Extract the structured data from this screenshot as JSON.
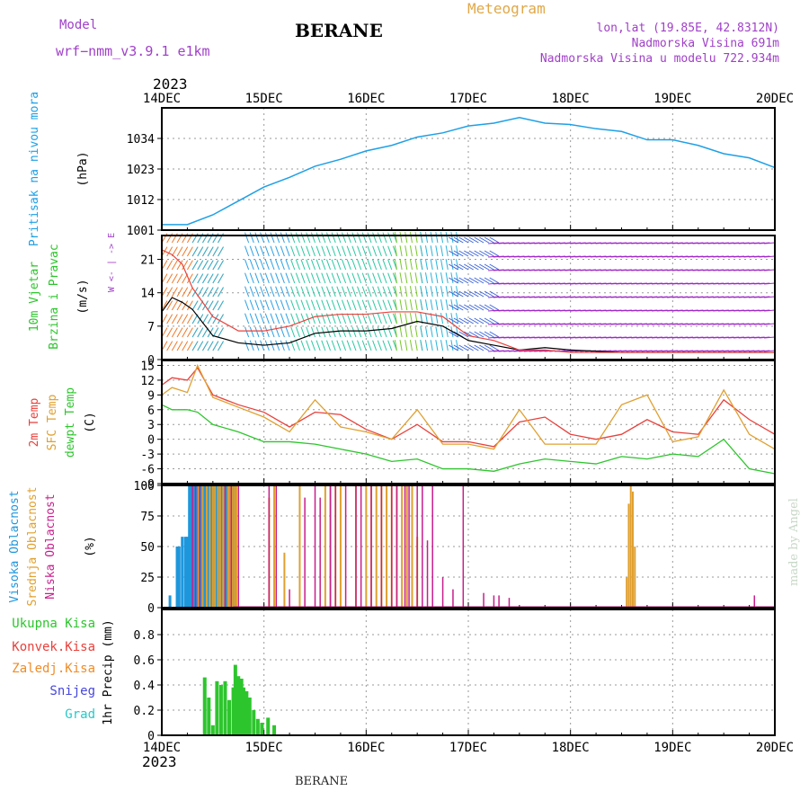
{
  "header": {
    "model_label": "Model",
    "model_name": "wrf−nmm_v3.9.1  e1km",
    "station": "BERANE",
    "product": "Meteogram",
    "coords": "lon,lat (19.85E, 42.8312N)",
    "elevation": "Nadmorska Visina 691m",
    "model_elevation": "Nadmorska Visina u modelu 722.934m",
    "year_top": "2023",
    "year_bottom": "2023",
    "footer_station": "BERANE",
    "credit": "made by Angel"
  },
  "colors": {
    "pressure": "#1EA0E6",
    "temp": "#E8413C",
    "sfc_temp": "#E0A030",
    "dewpt": "#2DC52D",
    "high_cloud": "#1E96DC",
    "mid_cloud": "#E0A030",
    "low_cloud": "#C81E8C",
    "total_precip": "#2DC52D",
    "conv_precip": "#E8413C",
    "frz_precip": "#F08C28",
    "snow": "#4646DC",
    "hail": "#28C8C8",
    "wind_speed": "#000000",
    "wind_gust": "#E8413C",
    "header_purple": "#A040C8",
    "header_orange": "#E0A848",
    "axis": "#000000",
    "grid": "#999999"
  },
  "chart_data": [
    {
      "type": "line",
      "panel": "pressure",
      "ylabel_title": "Pritisak na nivou mora",
      "ylabel_unit": "(hPa)",
      "x_ticks": [
        "14DEC",
        "15DEC",
        "16DEC",
        "17DEC",
        "18DEC",
        "19DEC",
        "20DEC"
      ],
      "ylim": [
        1001,
        1045
      ],
      "y_ticks": [
        1001,
        1012,
        1023,
        1034
      ],
      "series": [
        {
          "x": [
            0,
            0.25,
            0.5,
            0.75,
            1,
            1.25,
            1.5,
            1.75,
            2,
            2.25,
            2.5,
            2.75,
            3,
            3.25,
            3.5,
            3.75,
            4,
            4.25,
            4.5,
            4.75,
            5,
            5.25,
            5.5,
            5.75,
            6
          ],
          "values": [
            1003,
            1003,
            1006.5,
            1011.5,
            1016.5,
            1020,
            1024,
            1026.5,
            1029.5,
            1031.5,
            1034.5,
            1036,
            1038.5,
            1039.5,
            1041.5,
            1039.5,
            1039,
            1037.5,
            1036.5,
            1033.5,
            1033.5,
            1031.5,
            1028.5,
            1027,
            1023.5
          ]
        }
      ]
    },
    {
      "type": "line",
      "panel": "wind",
      "ylabel_title": "10m Vjetar",
      "ylabel_title2": "Brzina i Pravac",
      "ylabel_unit": "(m/s)",
      "compass_label": "W <- | -> E",
      "ylim": [
        0,
        26
      ],
      "y_ticks": [
        0,
        7,
        14,
        21
      ],
      "series": [
        {
          "name": "speed",
          "x": [
            0,
            0.1,
            0.2,
            0.3,
            0.5,
            0.75,
            1,
            1.25,
            1.5,
            1.75,
            2,
            2.25,
            2.5,
            2.75,
            3,
            3.25,
            3.5,
            3.75,
            4,
            4.5,
            5,
            5.5,
            6
          ],
          "values": [
            10,
            13,
            12,
            10.5,
            5,
            3.5,
            3,
            3.5,
            5.5,
            6,
            6,
            6.5,
            8,
            7,
            4,
            3,
            2,
            2.5,
            2,
            1.5,
            1.5,
            1.5,
            1.5
          ]
        },
        {
          "name": "gust",
          "x": [
            0,
            0.1,
            0.2,
            0.3,
            0.5,
            0.75,
            1,
            1.25,
            1.5,
            1.75,
            2,
            2.25,
            2.5,
            2.75,
            3,
            3.25,
            3.5,
            3.75,
            4,
            4.5,
            5,
            5.5,
            6
          ],
          "values": [
            23,
            22,
            20,
            15,
            9,
            6,
            6,
            7,
            9,
            9.5,
            9.5,
            10,
            10,
            9,
            5,
            4,
            2,
            2,
            1.5,
            1.5,
            1.5,
            1.5,
            1.5
          ]
        }
      ]
    },
    {
      "type": "line",
      "panel": "temperature",
      "ylabel_title": "2m Temp",
      "ylabel_title2": "SFC Temp",
      "ylabel_title3": "dewpt Temp",
      "ylabel_unit": "(C)",
      "ylim": [
        -9,
        16
      ],
      "y_ticks": [
        -9,
        -6,
        -3,
        0,
        3,
        6,
        9,
        12,
        15
      ],
      "series": [
        {
          "name": "2m",
          "x": [
            0,
            0.1,
            0.25,
            0.35,
            0.5,
            0.75,
            1,
            1.25,
            1.5,
            1.75,
            2,
            2.25,
            2.5,
            2.75,
            3,
            3.25,
            3.5,
            3.75,
            4,
            4.25,
            4.5,
            4.75,
            5,
            5.25,
            5.5,
            5.75,
            6
          ],
          "values": [
            11,
            12.5,
            12,
            14.5,
            9,
            7,
            5.5,
            2.5,
            5.5,
            5,
            2,
            0,
            3,
            -0.5,
            -0.5,
            -1.5,
            3.5,
            4.5,
            1,
            0,
            1,
            4,
            1.5,
            1,
            8,
            4,
            1
          ]
        },
        {
          "name": "sfc",
          "x": [
            0,
            0.1,
            0.25,
            0.35,
            0.5,
            0.75,
            1,
            1.25,
            1.5,
            1.75,
            2,
            2.25,
            2.5,
            2.75,
            3,
            3.25,
            3.5,
            3.75,
            4,
            4.25,
            4.5,
            4.75,
            5,
            5.25,
            5.5,
            5.75,
            6
          ],
          "values": [
            9,
            10.5,
            9.5,
            15,
            8.5,
            6.5,
            4.5,
            1.5,
            8,
            2.5,
            1.5,
            0,
            6,
            -1,
            -1,
            -2,
            6,
            -1,
            -1,
            -1,
            7,
            9,
            -0.5,
            0.5,
            10,
            1,
            -2
          ]
        },
        {
          "name": "dewpt",
          "x": [
            0,
            0.1,
            0.25,
            0.35,
            0.5,
            0.75,
            1,
            1.25,
            1.5,
            1.75,
            2,
            2.25,
            2.5,
            2.75,
            3,
            3.25,
            3.5,
            3.75,
            4,
            4.25,
            4.5,
            4.75,
            5,
            5.25,
            5.5,
            5.75,
            6
          ],
          "values": [
            7,
            6,
            6,
            5.5,
            3,
            1.5,
            -0.5,
            -0.5,
            -1,
            -2,
            -3,
            -4.5,
            -4,
            -6,
            -6,
            -6.5,
            -5,
            -4,
            -4.5,
            -5,
            -3.5,
            -4,
            -3,
            -3.5,
            0,
            -6,
            -7
          ]
        }
      ]
    },
    {
      "type": "bar",
      "panel": "cloud",
      "ylabel_title": "Visoka Oblacnost",
      "ylabel_title2": "Srednja Oblacnost",
      "ylabel_title3": "Niska Oblacnost",
      "ylabel_unit": "(%)",
      "ylim": [
        0,
        100
      ],
      "y_ticks": [
        0,
        25,
        50,
        75,
        100
      ],
      "series": [
        {
          "name": "high",
          "x": [
            0.08,
            0.15,
            0.17,
            0.2,
            0.23,
            0.25,
            0.27,
            0.29,
            0.31,
            0.33,
            0.35,
            0.37,
            0.39,
            0.41,
            0.43,
            0.46,
            0.48,
            0.51,
            0.54,
            0.56,
            0.59,
            0.61,
            0.64,
            0.67,
            0.7,
            0.72
          ],
          "values": [
            10,
            50,
            50,
            58,
            58,
            58,
            100,
            100,
            100,
            100,
            100,
            100,
            100,
            100,
            100,
            100,
            100,
            100,
            100,
            100,
            100,
            100,
            100,
            100,
            100,
            100
          ]
        },
        {
          "name": "mid",
          "x": [
            0.36,
            0.4,
            0.44,
            0.47,
            0.5,
            0.52,
            0.55,
            0.57,
            0.6,
            0.62,
            0.65,
            0.67,
            0.69,
            0.71,
            0.73,
            1.05,
            1.1,
            1.2,
            1.35,
            1.6,
            1.65,
            1.7,
            1.75,
            1.9,
            2.0,
            2.05,
            2.1,
            2.15,
            2.2,
            2.25,
            2.3,
            2.35,
            2.4,
            2.45,
            2.5,
            4.55,
            4.57,
            4.59,
            4.61,
            4.63
          ],
          "values": [
            100,
            100,
            100,
            100,
            100,
            100,
            100,
            100,
            100,
            100,
            100,
            100,
            100,
            100,
            100,
            90,
            100,
            45,
            100,
            100,
            100,
            100,
            100,
            100,
            100,
            100,
            100,
            100,
            100,
            100,
            100,
            100,
            100,
            100,
            58,
            25,
            85,
            100,
            95,
            50
          ]
        },
        {
          "name": "low",
          "x": [
            0.3,
            0.33,
            0.37,
            0.62,
            0.68,
            0.75,
            1.05,
            1.12,
            1.25,
            1.4,
            1.5,
            1.55,
            1.65,
            1.7,
            1.8,
            1.9,
            1.95,
            2.05,
            2.15,
            2.25,
            2.3,
            2.38,
            2.42,
            2.5,
            2.55,
            2.6,
            2.65,
            2.75,
            2.85,
            2.95,
            3.15,
            3.25,
            3.3,
            3.4,
            5.8
          ],
          "values": [
            100,
            100,
            100,
            100,
            100,
            100,
            100,
            100,
            15,
            90,
            100,
            90,
            100,
            100,
            100,
            100,
            100,
            100,
            100,
            100,
            100,
            100,
            100,
            100,
            100,
            55,
            100,
            25,
            15,
            100,
            12,
            10,
            10,
            8,
            10
          ]
        }
      ]
    },
    {
      "type": "bar",
      "panel": "precip",
      "ylabel_unit": "1hr Precip (mm)",
      "legend": [
        "Ukupna Kisa",
        "Konvek.Kisa",
        "Zaledj.Kisa",
        "Snijeg",
        "Grad"
      ],
      "x_ticks": [
        "14DEC",
        "15DEC",
        "16DEC",
        "17DEC",
        "18DEC",
        "19DEC",
        "20DEC"
      ],
      "ylim": [
        0,
        1.0
      ],
      "y_ticks": [
        0,
        0.2,
        0.4,
        0.6,
        0.8
      ],
      "series": [
        {
          "name": "total",
          "x": [
            0.42,
            0.46,
            0.5,
            0.54,
            0.58,
            0.62,
            0.66,
            0.7,
            0.72,
            0.75,
            0.78,
            0.8,
            0.83,
            0.86,
            0.9,
            0.94,
            0.98,
            1.04,
            1.1
          ],
          "values": [
            0.46,
            0.3,
            0.08,
            0.43,
            0.4,
            0.43,
            0.28,
            0.38,
            0.56,
            0.47,
            0.45,
            0.38,
            0.35,
            0.3,
            0.2,
            0.13,
            0.1,
            0.14,
            0.08
          ]
        }
      ]
    }
  ]
}
